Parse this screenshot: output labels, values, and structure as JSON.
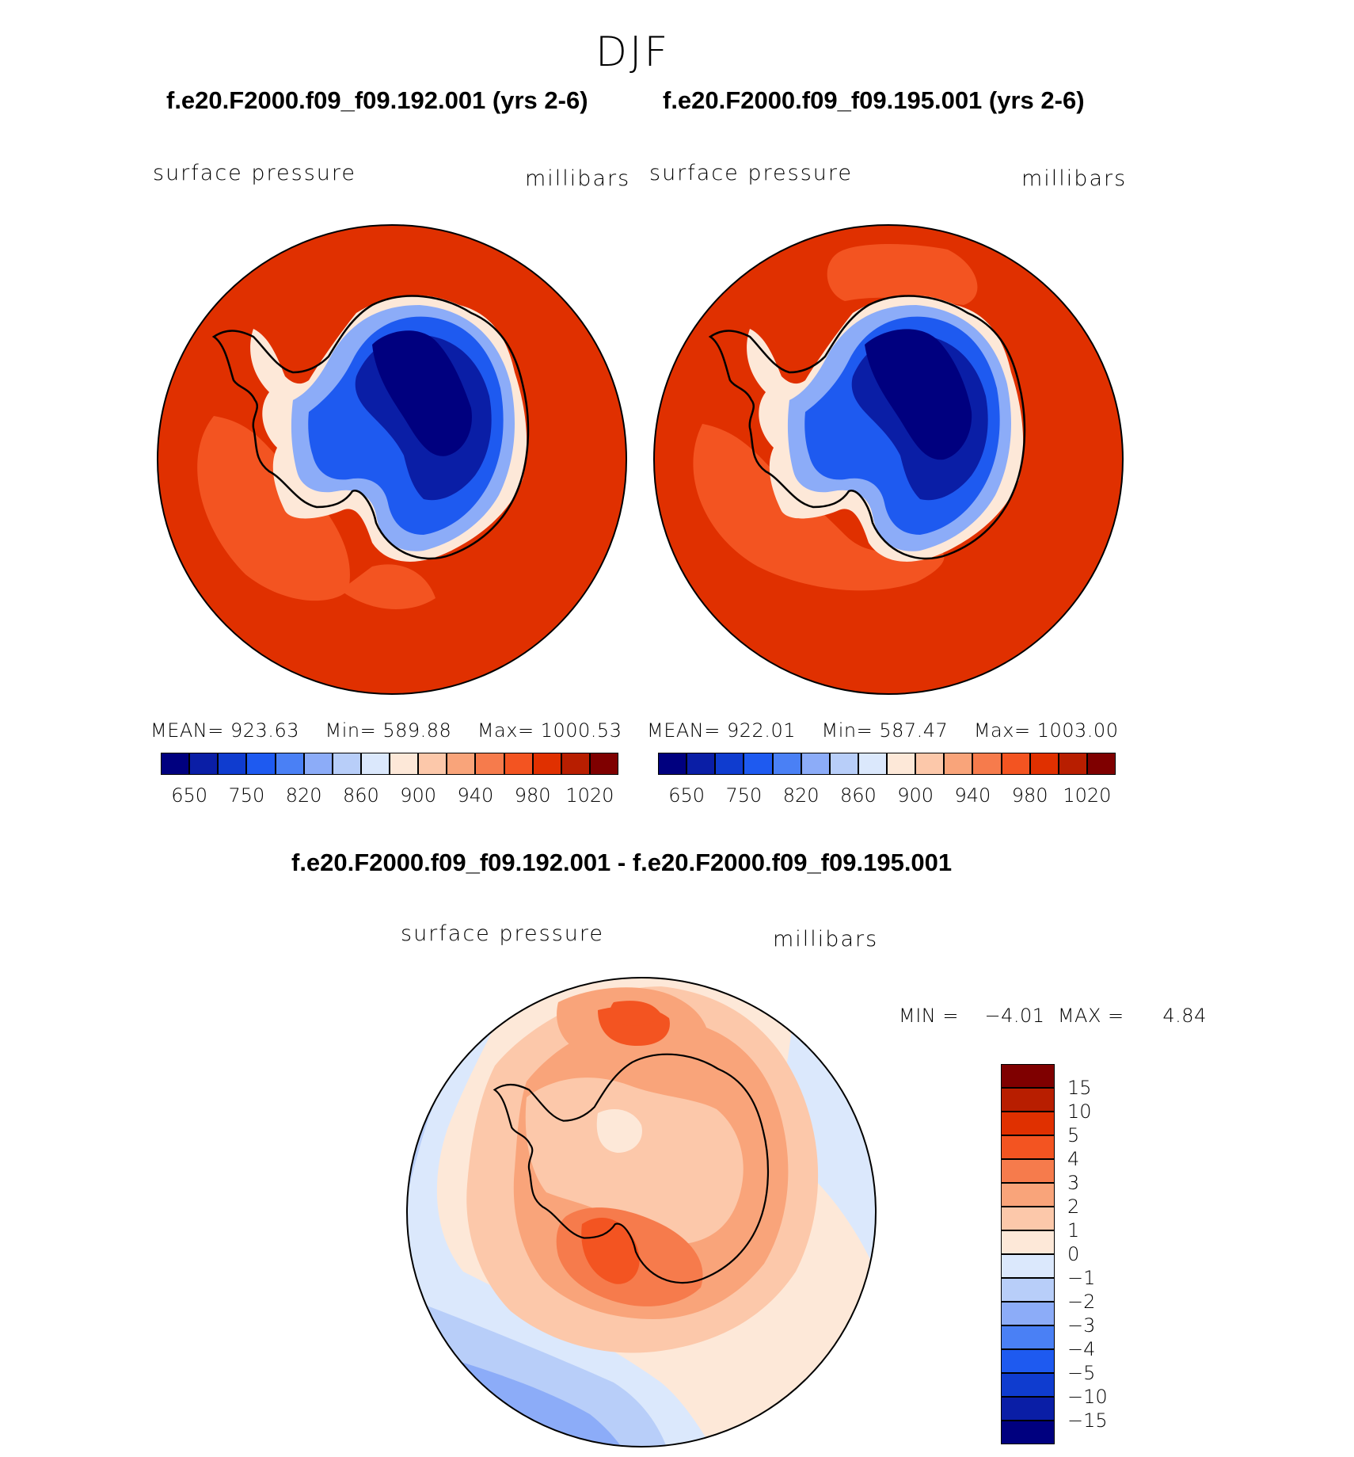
{
  "figure": {
    "season": "DJF",
    "top_left": {
      "title": "f.e20.F2000.f09_f09.192.001 (yrs 2-6)",
      "variable": "surface pressure",
      "units": "millibars",
      "stats": {
        "mean_label": "MEAN=",
        "mean": "923.63",
        "min_label": "Min=",
        "min": "589.88",
        "max_label": "Max=",
        "max": "1000.53"
      }
    },
    "top_right": {
      "title": "f.e20.F2000.f09_f09.195.001 (yrs 2-6)",
      "variable": "surface pressure",
      "units": "millibars",
      "stats": {
        "mean_label": "MEAN=",
        "mean": "922.01",
        "min_label": "Min=",
        "min": "587.47",
        "max_label": "Max=",
        "max": "1003.00"
      }
    },
    "colorbar_top": {
      "tick_labels": [
        "650",
        "750",
        "820",
        "860",
        "900",
        "940",
        "980",
        "1020"
      ],
      "colors": [
        "#00007f",
        "#0a1ea6",
        "#0f3ccf",
        "#1e5af0",
        "#4a80f5",
        "#8cacf8",
        "#b8cef9",
        "#dbe8fc",
        "#fde8d8",
        "#fcc8aa",
        "#f9a47a",
        "#f67b4c",
        "#f35421",
        "#e03000",
        "#b81e00",
        "#7f0000"
      ]
    },
    "difference": {
      "title": "f.e20.F2000.f09_f09.192.001 - f.e20.F2000.f09_f09.195.001",
      "variable": "surface pressure",
      "units": "millibars",
      "min_label": "MIN =",
      "min": "−4.01",
      "max_label": "MAX =",
      "max": "4.84"
    },
    "colorbar_diff": {
      "tick_labels": [
        "15",
        "10",
        "5",
        "4",
        "3",
        "2",
        "1",
        "0",
        "−1",
        "−2",
        "−3",
        "−4",
        "−5",
        "−10",
        "−15"
      ],
      "colors_top_to_bottom": [
        "#7f0000",
        "#b81e00",
        "#e03000",
        "#f35421",
        "#f67b4c",
        "#f9a47a",
        "#fcc8aa",
        "#fde8d8",
        "#dbe8fc",
        "#b8cef9",
        "#8cacf8",
        "#4a80f5",
        "#1e5af0",
        "#0f3ccf",
        "#0a1ea6",
        "#00007f"
      ]
    }
  }
}
